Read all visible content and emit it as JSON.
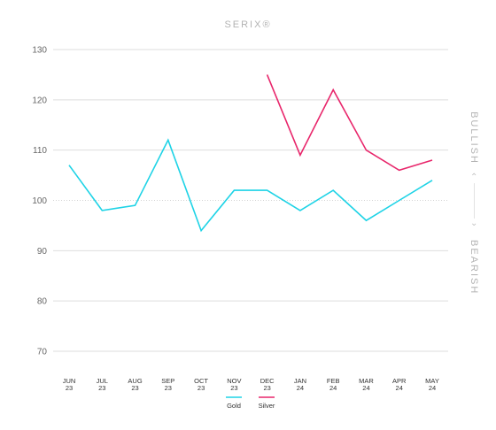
{
  "chart_data": {
    "type": "line",
    "title": "SERIX®",
    "categories": [
      [
        "JUN",
        "23"
      ],
      [
        "JUL",
        "23"
      ],
      [
        "AUG",
        "23"
      ],
      [
        "SEP",
        "23"
      ],
      [
        "OCT",
        "23"
      ],
      [
        "NOV",
        "23"
      ],
      [
        "DEC",
        "23"
      ],
      [
        "JAN",
        "24"
      ],
      [
        "FEB",
        "24"
      ],
      [
        "MAR",
        "24"
      ],
      [
        "APR",
        "24"
      ],
      [
        "MAY",
        "24"
      ]
    ],
    "ylim": [
      70,
      130
    ],
    "yticks": [
      70,
      80,
      90,
      100,
      110,
      120,
      130
    ],
    "reference_line": 100,
    "grid": true,
    "legend_position": "bottom-center",
    "side_labels": {
      "up": "BULLISH",
      "down": "BEARISH"
    },
    "series": [
      {
        "name": "Gold",
        "color": "#1ed3e6",
        "values": [
          107,
          98,
          99,
          112,
          94,
          102,
          102,
          98,
          102,
          96,
          100,
          104
        ]
      },
      {
        "name": "Silver",
        "color": "#e8266b",
        "values": [
          null,
          null,
          null,
          null,
          null,
          null,
          125,
          109,
          122,
          110,
          106,
          108
        ]
      }
    ]
  }
}
